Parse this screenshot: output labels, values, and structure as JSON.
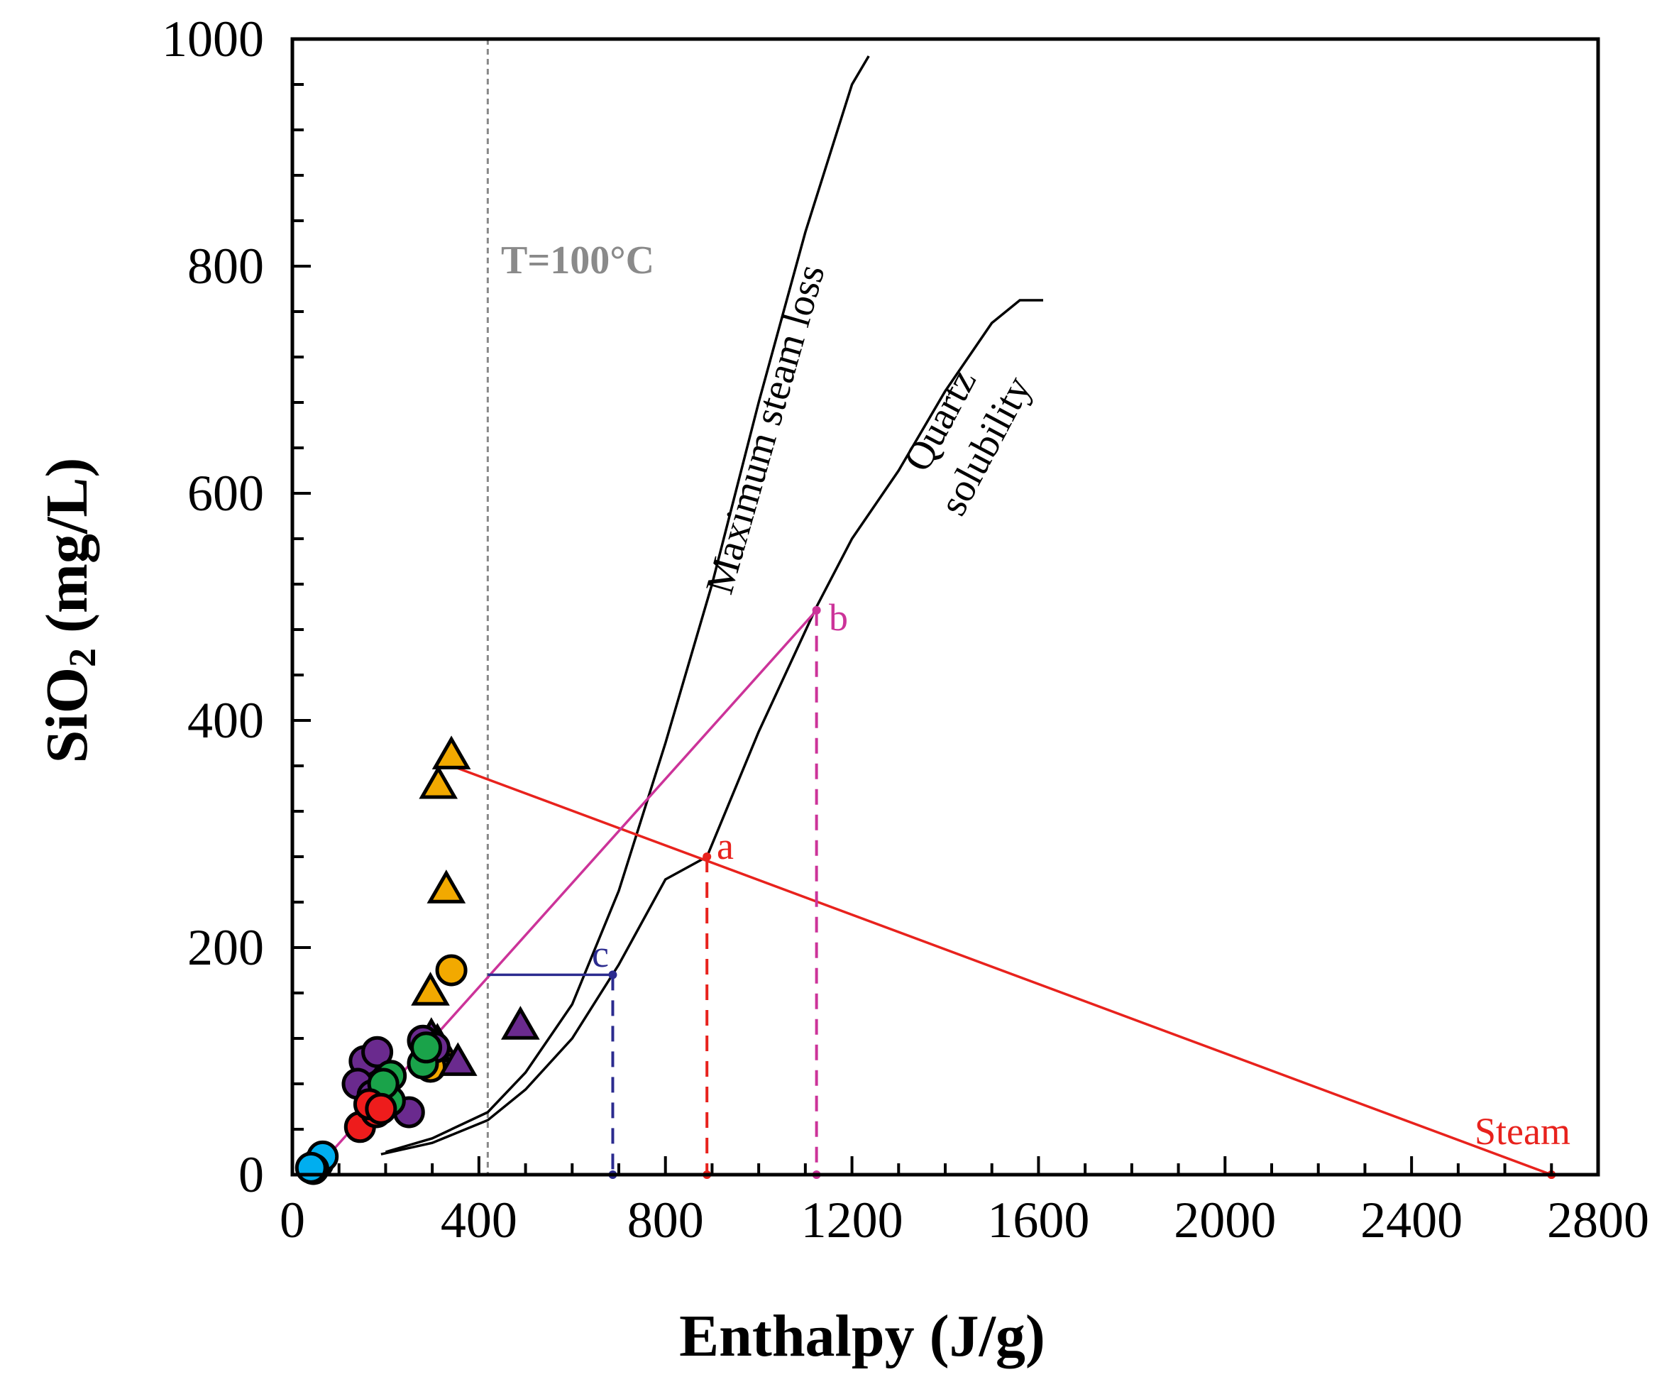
{
  "chart_data": {
    "type": "scatter",
    "title": "",
    "xlabel": "Enthalpy (J/g)",
    "ylabel_main": "SiO",
    "ylabel_sub": "2",
    "ylabel_unit": " (mg/L)",
    "xlim": [
      0,
      2800
    ],
    "ylim": [
      0,
      1000
    ],
    "x_ticks": [
      0,
      400,
      800,
      1200,
      1600,
      2000,
      2400,
      2800
    ],
    "y_ticks": [
      0,
      200,
      400,
      600,
      800,
      1000
    ],
    "x_minor_step": 100,
    "y_minor_step": 40,
    "grid": false,
    "colors": {
      "axis": "#000000",
      "mixing": "#e8221d",
      "magenta": "#cc3399",
      "blue": "#2b2b8f",
      "ref": "#888888",
      "orange": "#f2a900",
      "purple": "#6a2a8e",
      "green": "#1aa34a",
      "red": "#ee1c1c",
      "cyan": "#00aeef"
    },
    "annotations": {
      "t100": "T=100°C",
      "max_steam": "Maximum steam loss",
      "quartz_1": "Quartz",
      "quartz_2": "solubility",
      "label_a": "a",
      "label_b": "b",
      "label_c": "c",
      "steam": "Steam"
    },
    "reference_x": 419,
    "curves": [
      {
        "name": "Maximum steam loss",
        "points": [
          [
            200,
            20
          ],
          [
            300,
            32
          ],
          [
            419,
            55
          ],
          [
            500,
            90
          ],
          [
            600,
            150
          ],
          [
            700,
            250
          ],
          [
            800,
            380
          ],
          [
            900,
            520
          ],
          [
            1000,
            680
          ],
          [
            1100,
            830
          ],
          [
            1200,
            960
          ],
          [
            1236,
            985
          ]
        ]
      },
      {
        "name": "Quartz solubility",
        "points": [
          [
            190,
            18
          ],
          [
            300,
            28
          ],
          [
            419,
            48
          ],
          [
            500,
            75
          ],
          [
            600,
            120
          ],
          [
            700,
            185
          ],
          [
            800,
            260
          ],
          [
            889,
            280
          ],
          [
            1000,
            390
          ],
          [
            1124,
            500
          ],
          [
            1200,
            560
          ],
          [
            1300,
            620
          ],
          [
            1400,
            690
          ],
          [
            1500,
            750
          ],
          [
            1560,
            770
          ],
          [
            1610,
            770
          ]
        ]
      }
    ],
    "guide_lines": [
      {
        "name": "mixing-line-steam",
        "color": "mixing",
        "from": [
          341,
          360
        ],
        "to": [
          2700,
          0
        ]
      },
      {
        "name": "mixing-line-b",
        "color": "magenta",
        "from": [
          40,
          0
        ],
        "to": [
          1124,
          497
        ]
      },
      {
        "name": "line-c",
        "color": "blue",
        "from": [
          419,
          176
        ],
        "to": [
          687,
          176
        ]
      }
    ],
    "drop_lines": [
      {
        "name": "drop-a",
        "color": "mixing",
        "x": 889,
        "y": 280
      },
      {
        "name": "drop-b",
        "color": "magenta",
        "x": 1124,
        "y": 497
      },
      {
        "name": "drop-c",
        "color": "blue",
        "x": 687,
        "y": 176
      }
    ],
    "series": [
      {
        "name": "Orange triangles",
        "marker": "triangle",
        "color": "orange",
        "points": [
          [
            341,
            368
          ],
          [
            313,
            342
          ],
          [
            330,
            250
          ],
          [
            296,
            160
          ],
          [
            301,
            110
          ],
          [
            311,
            115
          ]
        ]
      },
      {
        "name": "Orange circles",
        "marker": "circle",
        "color": "orange",
        "points": [
          [
            341,
            180
          ],
          [
            296,
            95
          ]
        ]
      },
      {
        "name": "Purple triangles",
        "marker": "triangle",
        "color": "purple",
        "points": [
          [
            489,
            130
          ],
          [
            355,
            98
          ],
          [
            298,
            120
          ]
        ]
      },
      {
        "name": "Purple circles",
        "marker": "circle",
        "color": "purple",
        "points": [
          [
            155,
            100
          ],
          [
            182,
            108
          ],
          [
            140,
            80
          ],
          [
            172,
            70
          ],
          [
            250,
            55
          ],
          [
            280,
            118
          ],
          [
            305,
            112
          ],
          [
            200,
            62
          ]
        ]
      },
      {
        "name": "Green circles",
        "marker": "circle",
        "color": "green",
        "points": [
          [
            211,
            87
          ],
          [
            209,
            65
          ],
          [
            280,
            98
          ],
          [
            287,
            112
          ],
          [
            195,
            80
          ]
        ]
      },
      {
        "name": "Red circles",
        "marker": "circle",
        "color": "red",
        "points": [
          [
            145,
            42
          ],
          [
            180,
            55
          ],
          [
            165,
            62
          ],
          [
            190,
            58
          ]
        ]
      },
      {
        "name": "Cyan circles",
        "marker": "circle",
        "color": "cyan",
        "points": [
          [
            55,
            10
          ],
          [
            65,
            16
          ],
          [
            45,
            5
          ],
          [
            40,
            6
          ]
        ]
      }
    ],
    "mark_points": [
      {
        "name": "point-a",
        "color": "mixing",
        "x": 889,
        "y": 280
      },
      {
        "name": "point-b",
        "color": "magenta",
        "x": 1124,
        "y": 497
      },
      {
        "name": "point-c",
        "color": "blue",
        "x": 687,
        "y": 176
      },
      {
        "name": "point-steam",
        "color": "mixing",
        "x": 2700,
        "y": 0
      }
    ]
  }
}
